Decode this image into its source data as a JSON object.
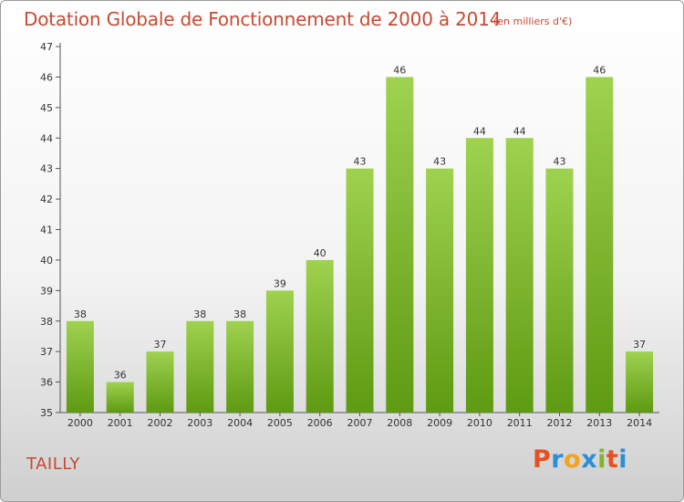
{
  "title": "Dotation Globale de Fonctionnement de 2000 à 2014",
  "unit": "(en milliers d'€)",
  "commune": "TAILLY",
  "logo": {
    "text": "Proxiti",
    "colors": [
      "#e8501e",
      "#2a8fd6",
      "#f2a21b",
      "#2a8fd6",
      "#7db62a",
      "#e8501e",
      "#2a8fd6"
    ]
  },
  "chart_data": {
    "type": "bar",
    "categories": [
      "2000",
      "2001",
      "2002",
      "2003",
      "2004",
      "2005",
      "2006",
      "2007",
      "2008",
      "2009",
      "2010",
      "2011",
      "2012",
      "2013",
      "2014"
    ],
    "values": [
      38,
      36,
      37,
      38,
      38,
      39,
      40,
      43,
      46,
      43,
      44,
      44,
      43,
      46,
      37
    ],
    "ylim": [
      35,
      47
    ],
    "yticks": [
      35,
      36,
      37,
      38,
      39,
      40,
      41,
      42,
      43,
      44,
      45,
      46,
      47
    ],
    "grid": false,
    "bar_color_top": "#9fd24f",
    "bar_color_bottom": "#5e9a12"
  }
}
